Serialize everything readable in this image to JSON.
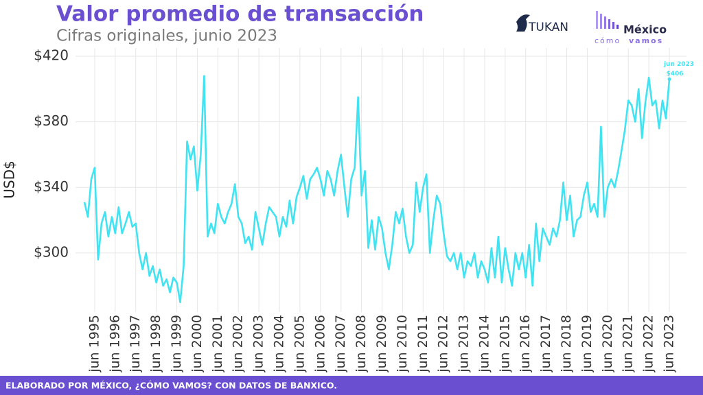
{
  "chart_data": {
    "type": "line",
    "title": "Valor promedio de transacción",
    "subtitle": "Cifras originales, junio 2023",
    "y_label": "USD$",
    "footer": "ELABORADO POR MÉXICO, ¿CÓMO VAMOS? CON DATOS DE BANXICO.",
    "logos": {
      "tukan": "TUKAN",
      "mcv_top": "México",
      "mcv_bottom1": "cómo",
      "mcv_bottom2": "vamos"
    },
    "annotation": {
      "date": "jun 2023",
      "value": "$406"
    },
    "categories": [
      null,
      null,
      null,
      "jun 1995",
      null,
      null,
      null,
      null,
      null,
      "jun 1996",
      null,
      null,
      null,
      null,
      null,
      "jun 1997",
      null,
      null,
      null,
      null,
      null,
      "jun 1998",
      null,
      null,
      null,
      null,
      null,
      "jun 1999",
      null,
      null,
      null,
      null,
      null,
      "jun 2000",
      null,
      null,
      null,
      null,
      null,
      "jun 2001",
      null,
      null,
      null,
      null,
      null,
      "jun 2002",
      null,
      null,
      null,
      null,
      null,
      "jun 2003",
      null,
      null,
      null,
      null,
      null,
      "jun 2004",
      null,
      null,
      null,
      null,
      null,
      "jun 2005",
      null,
      null,
      null,
      null,
      null,
      "jun 2006",
      null,
      null,
      null,
      null,
      null,
      "jun 2007",
      null,
      null,
      null,
      null,
      null,
      "jun 2008",
      null,
      null,
      null,
      null,
      null,
      "jun 2009",
      null,
      null,
      null,
      null,
      null,
      "jun 2010",
      null,
      null,
      null,
      null,
      null,
      "jun 2011",
      null,
      null,
      null,
      null,
      null,
      "jun 2012",
      null,
      null,
      null,
      null,
      null,
      "jun 2013",
      null,
      null,
      null,
      null,
      null,
      "jun 2014",
      null,
      null,
      null,
      null,
      null,
      "jun 2015",
      null,
      null,
      null,
      null,
      null,
      "jun 2016",
      null,
      null,
      null,
      null,
      null,
      "jun 2017",
      null,
      null,
      null,
      null,
      null,
      "jun 2018",
      null,
      null,
      null,
      null,
      null,
      "jun 2019",
      null,
      null,
      null,
      null,
      null,
      "jun 2020",
      null,
      null,
      null,
      null,
      null,
      "jun 2021",
      null,
      null,
      null,
      null,
      null,
      "jun 2022",
      null,
      null,
      null,
      null,
      null,
      "jun 2023"
    ],
    "series": [
      {
        "name": "Valor promedio",
        "color": "#40e3f2",
        "values": [
          331,
          322,
          345,
          352,
          296,
          318,
          325,
          310,
          322,
          312,
          328,
          312,
          318,
          325,
          316,
          318,
          300,
          290,
          300,
          286,
          292,
          282,
          290,
          280,
          284,
          276,
          285,
          282,
          270,
          292,
          368,
          357,
          365,
          338,
          360,
          408,
          310,
          318,
          312,
          330,
          322,
          318,
          325,
          330,
          342,
          322,
          318,
          306,
          310,
          302,
          325,
          315,
          305,
          318,
          328,
          325,
          322,
          310,
          322,
          316,
          332,
          318,
          334,
          340,
          347,
          333,
          345,
          348,
          352,
          345,
          335,
          350,
          345,
          335,
          350,
          360,
          340,
          322,
          345,
          352,
          395,
          335,
          350,
          303,
          320,
          302,
          322,
          315,
          300,
          290,
          305,
          325,
          318,
          327,
          310,
          300,
          305,
          343,
          325,
          340,
          348,
          300,
          320,
          335,
          330,
          312,
          298,
          295,
          300,
          290,
          300,
          285,
          295,
          292,
          300,
          285,
          295,
          290,
          282,
          303,
          285,
          310,
          282,
          303,
          290,
          280,
          300,
          290,
          300,
          285,
          305,
          280,
          318,
          295,
          315,
          310,
          305,
          315,
          310,
          320,
          343,
          320,
          335,
          310,
          320,
          322,
          335,
          343,
          325,
          330,
          322,
          377,
          322,
          340,
          345,
          340,
          350,
          362,
          375,
          393,
          390,
          380,
          400,
          370,
          392,
          407,
          390,
          393,
          376,
          393,
          382,
          406
        ]
      }
    ],
    "ylim": [
      264,
      425
    ],
    "yticks": [
      {
        "value": 300,
        "label": "$300"
      },
      {
        "value": 340,
        "label": "$340"
      },
      {
        "value": 380,
        "label": "$380"
      },
      {
        "value": 420,
        "label": "$420"
      }
    ],
    "grid": true
  }
}
